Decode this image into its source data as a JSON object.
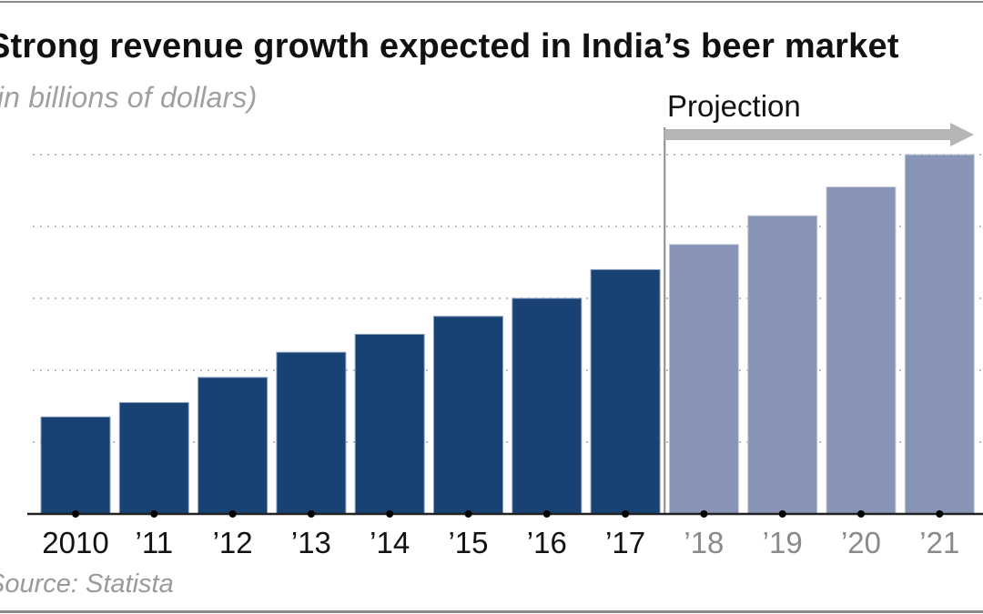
{
  "chart_data": {
    "type": "bar",
    "title": "Strong revenue growth expected in India’s beer market",
    "subtitle": "(in billions of dollars)",
    "xlabel": "",
    "ylabel": "",
    "source": "Source: Statista",
    "annotation": "Projection",
    "projection_starts_at": "’18",
    "categories": [
      "2010",
      "’11",
      "’12",
      "’13",
      "’14",
      "’15",
      "’16",
      "’17",
      "’18",
      "’19",
      "’20",
      "’21"
    ],
    "values": [
      2.7,
      3.1,
      3.8,
      4.5,
      5.0,
      5.5,
      6.0,
      6.8,
      7.5,
      8.3,
      9.1,
      10.0
    ],
    "projected": [
      false,
      false,
      false,
      false,
      false,
      false,
      false,
      false,
      true,
      true,
      true,
      true
    ],
    "ylim": [
      0,
      10
    ],
    "yticks": [
      0,
      2,
      4,
      6,
      8,
      10
    ],
    "ytick_labels_visible": false,
    "grid": true,
    "colors": {
      "actual": "#174273",
      "projected": "#8794b5",
      "projected_label": "#8a8a8a",
      "actual_label": "#111111",
      "arrow": "#b5b5b5",
      "grid": "#bdbdbd"
    }
  }
}
